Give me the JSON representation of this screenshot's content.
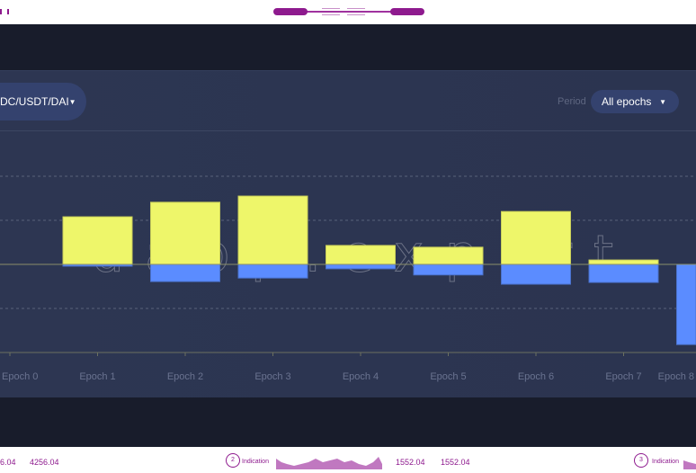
{
  "header": {
    "asset_selector": "DC/USDT/DAI",
    "period_label": "Period",
    "period_value": "All epochs"
  },
  "watermark": "dapp.expert",
  "colors": {
    "positive": "#eef66a",
    "negative": "#5b8cff",
    "card": "#2c3550",
    "accent": "#8e1a8e"
  },
  "chart_data": {
    "type": "bar",
    "stacked": "diverging",
    "categories": [
      "Epoch 0",
      "Epoch 1",
      "Epoch 2",
      "Epoch 3",
      "Epoch 4",
      "Epoch 5",
      "Epoch 6",
      "Epoch 7",
      "Epoch 8"
    ],
    "series": [
      {
        "values": [
          0,
          1.08,
          1.41,
          1.55,
          0.43,
          0.39,
          1.2,
          0.1,
          0
        ],
        "color": "#eef66a"
      },
      {
        "values": [
          0,
          -0.04,
          -0.39,
          -0.31,
          -0.1,
          -0.24,
          -0.45,
          -0.41,
          -1.82
        ],
        "color": "#5b8cff"
      }
    ],
    "ylim": [
      -2,
      3
    ],
    "grid": true,
    "y_tick_labels_shown": false
  },
  "footer": {
    "items": [
      {
        "text": "6.04"
      },
      {
        "text": "4256.04"
      },
      {
        "badge": "2",
        "label": "Indication"
      },
      {
        "text": "1552.04"
      },
      {
        "text": "1552.04"
      },
      {
        "badge": "3",
        "label": "Indication"
      }
    ]
  }
}
